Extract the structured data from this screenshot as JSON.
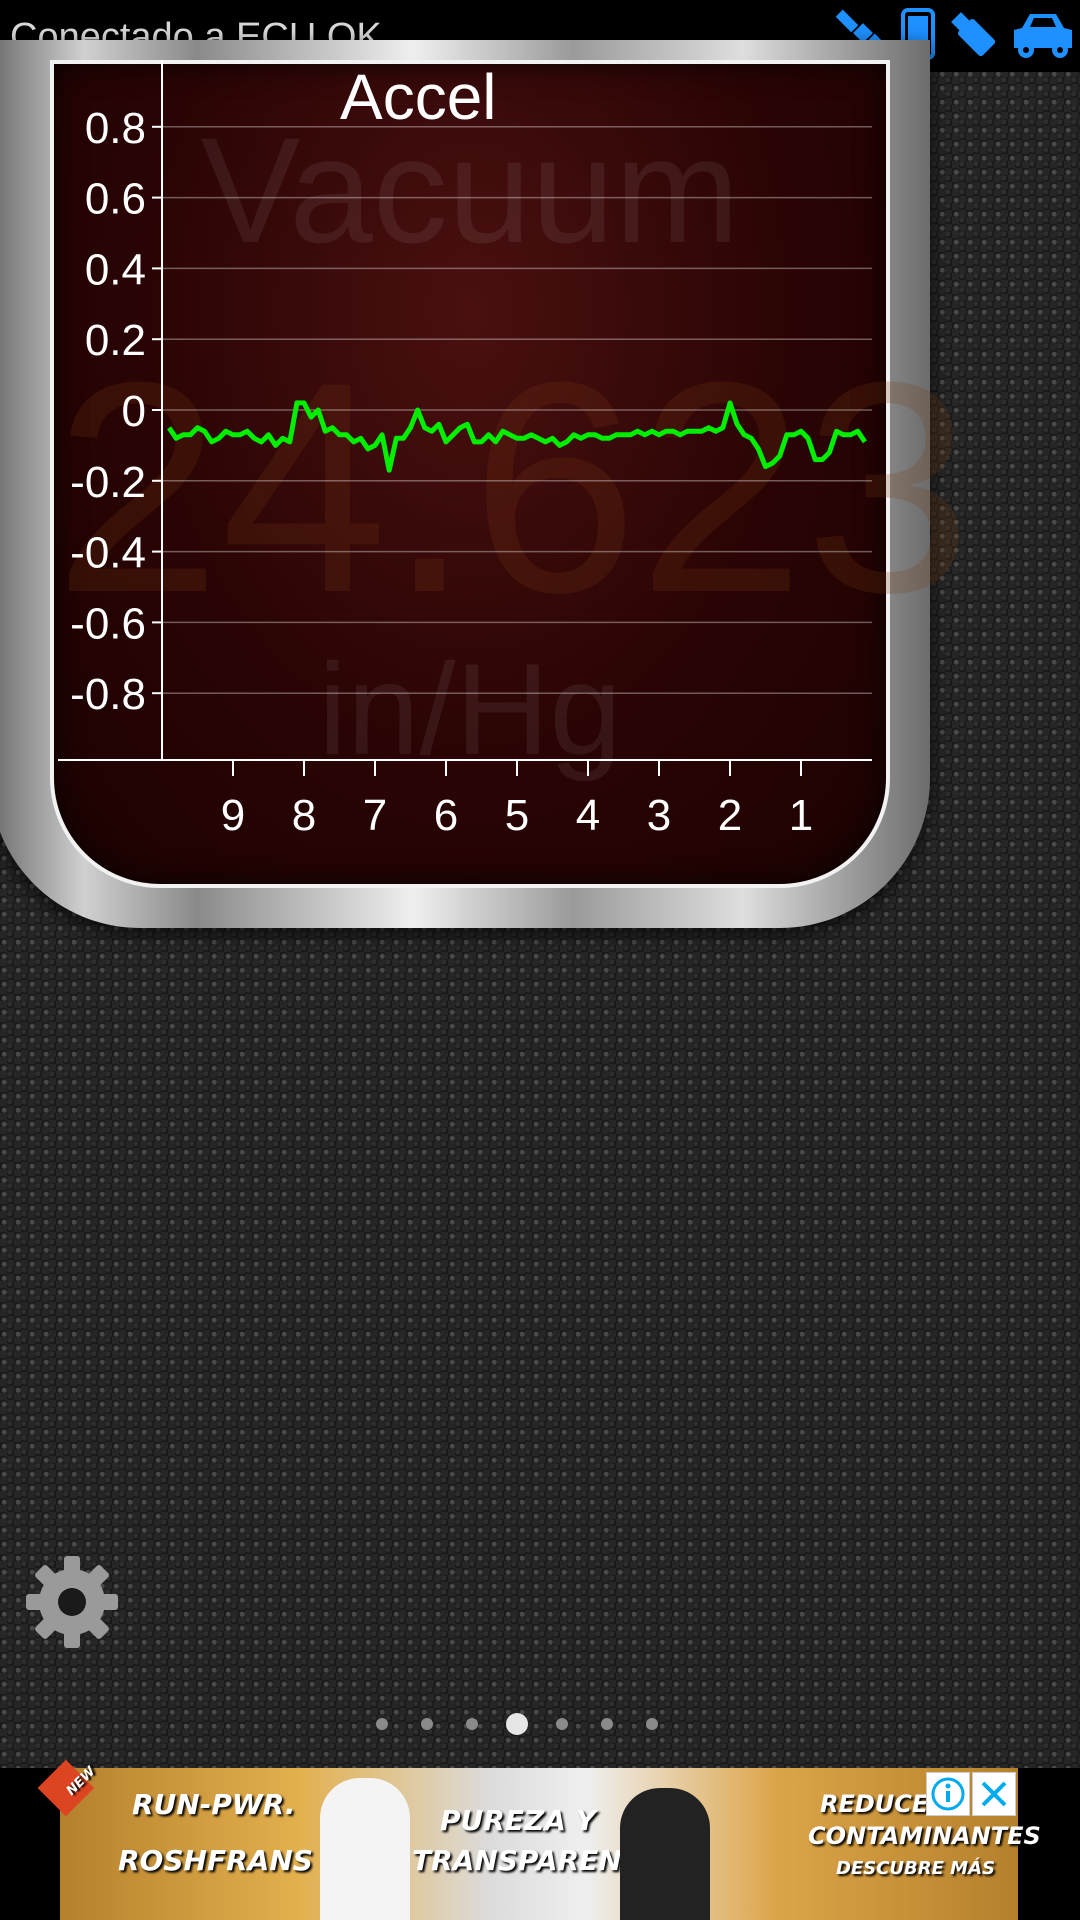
{
  "status_bar": {
    "connection_text": "Conectado a ECU OK.",
    "icons": [
      "satellite-icon",
      "phone-icon",
      "usb-dongle-icon",
      "car-icon"
    ],
    "icon_color": "#1e90ff"
  },
  "gauge": {
    "background_name": "Vacuum",
    "background_value": "24.623",
    "background_unit": "in/Hg",
    "title": "Accel"
  },
  "chart_data": {
    "type": "line",
    "title": "Accel",
    "xlabel": "",
    "ylabel": "",
    "x_tick_labels": [
      "9",
      "8",
      "7",
      "6",
      "5",
      "4",
      "3",
      "2",
      "1"
    ],
    "y_tick_labels": [
      "0.8",
      "0.6",
      "0.4",
      "0.2",
      "0",
      "-0.2",
      "-0.4",
      "-0.6",
      "-0.8"
    ],
    "ylim": [
      -1,
      1
    ],
    "xlim": [
      10,
      0
    ],
    "grid": true,
    "series": [
      {
        "color": "#00ee00",
        "x": [
          9.9,
          9.8,
          9.7,
          9.6,
          9.5,
          9.4,
          9.3,
          9.2,
          9.1,
          9.0,
          8.9,
          8.8,
          8.7,
          8.6,
          8.5,
          8.4,
          8.3,
          8.2,
          8.1,
          8.0,
          7.9,
          7.8,
          7.7,
          7.6,
          7.5,
          7.4,
          7.3,
          7.2,
          7.1,
          7.0,
          6.9,
          6.8,
          6.7,
          6.6,
          6.5,
          6.4,
          6.3,
          6.2,
          6.1,
          6.0,
          5.9,
          5.8,
          5.7,
          5.6,
          5.5,
          5.4,
          5.3,
          5.2,
          5.1,
          5.0,
          4.9,
          4.8,
          4.7,
          4.6,
          4.5,
          4.4,
          4.3,
          4.2,
          4.1,
          4.0,
          3.9,
          3.8,
          3.7,
          3.6,
          3.5,
          3.4,
          3.3,
          3.2,
          3.1,
          3.0,
          2.9,
          2.8,
          2.7,
          2.6,
          2.5,
          2.4,
          2.3,
          2.2,
          2.1,
          2.0,
          1.9,
          1.8,
          1.7,
          1.6,
          1.5,
          1.4,
          1.3,
          1.2,
          1.1,
          1.0,
          0.9,
          0.8,
          0.7,
          0.6,
          0.5,
          0.4,
          0.3,
          0.2,
          0.1
        ],
        "y": [
          -0.05,
          -0.08,
          -0.07,
          -0.07,
          -0.05,
          -0.06,
          -0.09,
          -0.08,
          -0.06,
          -0.07,
          -0.07,
          -0.06,
          -0.08,
          -0.09,
          -0.07,
          -0.1,
          -0.08,
          -0.09,
          0.02,
          0.02,
          -0.02,
          0.0,
          -0.06,
          -0.05,
          -0.07,
          -0.07,
          -0.09,
          -0.08,
          -0.11,
          -0.1,
          -0.07,
          -0.17,
          -0.08,
          -0.08,
          -0.05,
          0.0,
          -0.05,
          -0.06,
          -0.04,
          -0.09,
          -0.07,
          -0.05,
          -0.04,
          -0.09,
          -0.09,
          -0.07,
          -0.09,
          -0.06,
          -0.07,
          -0.08,
          -0.08,
          -0.07,
          -0.08,
          -0.09,
          -0.08,
          -0.1,
          -0.09,
          -0.07,
          -0.08,
          -0.07,
          -0.07,
          -0.08,
          -0.08,
          -0.07,
          -0.07,
          -0.07,
          -0.06,
          -0.07,
          -0.06,
          -0.07,
          -0.06,
          -0.06,
          -0.07,
          -0.06,
          -0.06,
          -0.06,
          -0.05,
          -0.06,
          -0.05,
          0.02,
          -0.04,
          -0.07,
          -0.08,
          -0.11,
          -0.16,
          -0.15,
          -0.13,
          -0.07,
          -0.07,
          -0.06,
          -0.08,
          -0.14,
          -0.14,
          -0.12,
          -0.06,
          -0.07,
          -0.07,
          -0.06,
          -0.09
        ]
      }
    ]
  },
  "pager": {
    "count": 7,
    "active_index": 3
  },
  "ad": {
    "text_1": "RUN-PWR.",
    "text_2": "ROSHFRANS",
    "text_3": "PUREZA Y",
    "text_4": "TRANSPARENCIA",
    "text_5": "REDUCE",
    "text_6": "CONTAMINANTES",
    "text_7": "DESCUBRE MÁS",
    "badge": "NEW",
    "info_icon": "info-icon",
    "close_icon": "close-icon"
  }
}
